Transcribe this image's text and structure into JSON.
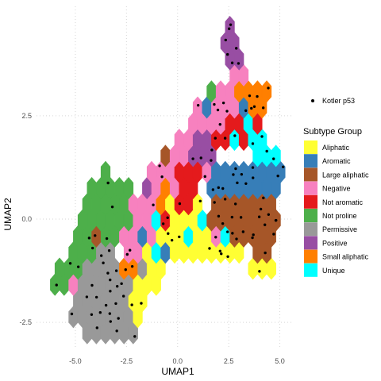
{
  "chart_data": {
    "type": "hexbin-scatter",
    "xlabel": "UMAP1",
    "ylabel": "UMAP2",
    "xlim": [
      -6.9,
      5.6
    ],
    "ylim": [
      -3.15,
      5.15
    ],
    "x_ticks": [
      -5.0,
      -2.5,
      0.0,
      2.5,
      5.0
    ],
    "x_tick_labels": [
      "-5.0",
      "-2.5",
      "0.0",
      "2.5",
      "5.0"
    ],
    "y_ticks": [
      -2.5,
      0.0,
      2.5
    ],
    "y_tick_labels": [
      "-2.5",
      "0.0",
      "2.5"
    ],
    "grid": "dotted, major lines",
    "hex_radius": 0.26,
    "legend": {
      "position": "right",
      "point_label": "Kotler p53",
      "title": "Subtype Group",
      "items": [
        {
          "label": "Aliphatic",
          "color": "#FFFF33"
        },
        {
          "label": "Aromatic",
          "color": "#377EB8"
        },
        {
          "label": "Large aliphatic",
          "color": "#A65628"
        },
        {
          "label": "Negative",
          "color": "#F781BF"
        },
        {
          "label": "Not aromatic",
          "color": "#E41A1C"
        },
        {
          "label": "Not proline",
          "color": "#4DAF4A"
        },
        {
          "label": "Permissive",
          "color": "#999999"
        },
        {
          "label": "Positive",
          "color": "#984EA3"
        },
        {
          "label": "Small aliphatic",
          "color": "#FF7F00"
        },
        {
          "label": "Unique",
          "color": "#00FFFF"
        }
      ]
    },
    "regions": [
      {
        "group": "Not proline",
        "polygon": [
          [
            -6.4,
            -1.4
          ],
          [
            -5.9,
            -1.2
          ],
          [
            -5.4,
            -0.8
          ],
          [
            -5.2,
            -0.2
          ],
          [
            -4.8,
            0.3
          ],
          [
            -4.4,
            0.6
          ],
          [
            -3.6,
            1.2
          ],
          [
            -3.0,
            1.0
          ],
          [
            -2.4,
            1.0
          ],
          [
            -2.0,
            0.5
          ],
          [
            -1.8,
            0.0
          ],
          [
            -2.2,
            -0.4
          ],
          [
            -2.6,
            -0.4
          ],
          [
            -3.0,
            -0.6
          ],
          [
            -3.6,
            -0.8
          ],
          [
            -4.2,
            -1.2
          ],
          [
            -4.8,
            -1.5
          ],
          [
            -5.4,
            -1.8
          ],
          [
            -6.1,
            -1.8
          ]
        ]
      },
      {
        "group": "Permissive",
        "polygon": [
          [
            -5.2,
            -1.6
          ],
          [
            -4.4,
            -1.0
          ],
          [
            -3.6,
            -0.5
          ],
          [
            -2.8,
            -0.9
          ],
          [
            -2.2,
            -1.2
          ],
          [
            -1.8,
            -1.8
          ],
          [
            -1.6,
            -2.6
          ],
          [
            -2.2,
            -3.0
          ],
          [
            -3.2,
            -3.0
          ],
          [
            -4.4,
            -2.8
          ],
          [
            -5.2,
            -2.4
          ]
        ]
      },
      {
        "group": "Negative",
        "polygon": [
          [
            -2.8,
            -0.3
          ],
          [
            -2.2,
            0.4
          ],
          [
            -1.8,
            0.9
          ],
          [
            -1.0,
            1.4
          ],
          [
            -0.2,
            1.8
          ],
          [
            0.4,
            2.2
          ],
          [
            1.0,
            2.8
          ],
          [
            1.6,
            3.1
          ],
          [
            2.2,
            3.4
          ],
          [
            2.8,
            3.6
          ],
          [
            3.2,
            3.8
          ],
          [
            3.4,
            3.3
          ],
          [
            3.0,
            2.5
          ],
          [
            2.4,
            2.0
          ],
          [
            1.8,
            1.4
          ],
          [
            1.0,
            0.7
          ],
          [
            0.4,
            0.4
          ],
          [
            -0.2,
            0.0
          ],
          [
            -0.8,
            -0.4
          ],
          [
            -1.4,
            -0.8
          ],
          [
            -2.0,
            -1.6
          ],
          [
            -2.6,
            -1.3
          ]
        ]
      },
      {
        "group": "Aliphatic",
        "polygon": [
          [
            -2.2,
            -1.4
          ],
          [
            -1.6,
            -0.6
          ],
          [
            -1.0,
            -0.1
          ],
          [
            -0.4,
            0.4
          ],
          [
            0.2,
            0.6
          ],
          [
            0.8,
            0.5
          ],
          [
            1.6,
            0.0
          ],
          [
            2.6,
            -0.6
          ],
          [
            3.4,
            -0.9
          ],
          [
            4.4,
            -0.9
          ],
          [
            4.8,
            -1.1
          ],
          [
            4.4,
            -1.3
          ],
          [
            3.4,
            -1.2
          ],
          [
            2.4,
            -1.1
          ],
          [
            1.4,
            -1.1
          ],
          [
            0.6,
            -1.1
          ],
          [
            0.0,
            -1.0
          ],
          [
            -0.6,
            -1.1
          ],
          [
            -1.0,
            -1.6
          ],
          [
            -1.6,
            -2.2
          ],
          [
            -2.2,
            -2.6
          ],
          [
            -2.6,
            -2.0
          ]
        ]
      },
      {
        "group": "Large aliphatic",
        "polygon": [
          [
            1.2,
            0.2
          ],
          [
            2.0,
            0.4
          ],
          [
            3.0,
            0.6
          ],
          [
            4.0,
            0.8
          ],
          [
            4.8,
            0.9
          ],
          [
            5.0,
            0.2
          ],
          [
            4.9,
            -0.6
          ],
          [
            4.4,
            -0.9
          ],
          [
            3.6,
            -0.8
          ],
          [
            2.8,
            -0.7
          ],
          [
            2.0,
            -0.5
          ],
          [
            1.4,
            -0.2
          ]
        ]
      },
      {
        "group": "Aromatic",
        "polygon": [
          [
            1.6,
            1.3
          ],
          [
            2.2,
            1.4
          ],
          [
            3.0,
            1.5
          ],
          [
            3.8,
            1.3
          ],
          [
            4.6,
            1.4
          ],
          [
            5.1,
            1.2
          ],
          [
            5.1,
            0.6
          ],
          [
            4.6,
            0.7
          ],
          [
            3.8,
            0.7
          ],
          [
            3.0,
            0.6
          ],
          [
            2.2,
            0.5
          ],
          [
            1.6,
            0.6
          ]
        ]
      },
      {
        "group": "Not aromatic",
        "polygon": [
          [
            1.8,
            2.1
          ],
          [
            2.4,
            2.3
          ],
          [
            3.0,
            2.5
          ],
          [
            3.6,
            2.6
          ],
          [
            4.0,
            2.4
          ],
          [
            4.3,
            1.9
          ],
          [
            3.8,
            1.8
          ],
          [
            3.2,
            1.9
          ],
          [
            2.6,
            1.8
          ],
          [
            2.0,
            1.8
          ]
        ]
      },
      {
        "group": "Small aliphatic",
        "polygon": [
          [
            2.7,
            3.4
          ],
          [
            3.2,
            3.2
          ],
          [
            3.8,
            3.4
          ],
          [
            4.4,
            3.5
          ],
          [
            4.7,
            3.0
          ],
          [
            4.5,
            2.5
          ],
          [
            4.0,
            2.4
          ],
          [
            3.5,
            2.6
          ],
          [
            3.0,
            2.7
          ],
          [
            2.6,
            3.0
          ]
        ]
      },
      {
        "group": "Unique",
        "polygon": [
          [
            3.3,
            2.6
          ],
          [
            3.9,
            2.1
          ],
          [
            4.5,
            1.8
          ],
          [
            4.9,
            1.6
          ],
          [
            5.1,
            1.3
          ],
          [
            4.7,
            1.3
          ],
          [
            4.1,
            1.3
          ],
          [
            3.6,
            1.6
          ],
          [
            3.2,
            2.0
          ],
          [
            3.0,
            2.4
          ]
        ]
      },
      {
        "group": "Positive",
        "polygon": [
          [
            2.3,
            5.0
          ],
          [
            2.8,
            4.7
          ],
          [
            3.2,
            4.4
          ],
          [
            3.3,
            3.9
          ],
          [
            2.9,
            3.6
          ],
          [
            2.5,
            3.7
          ],
          [
            2.2,
            4.1
          ],
          [
            2.1,
            4.6
          ]
        ]
      },
      {
        "group": "Positive",
        "polygon": [
          [
            0.6,
            1.9
          ],
          [
            1.2,
            2.1
          ],
          [
            1.8,
            1.9
          ],
          [
            2.2,
            1.6
          ],
          [
            1.6,
            1.4
          ],
          [
            0.9,
            1.5
          ],
          [
            0.4,
            1.6
          ]
        ]
      },
      {
        "group": "Not aromatic",
        "polygon": [
          [
            -0.2,
            1.2
          ],
          [
            0.4,
            1.5
          ],
          [
            1.0,
            1.2
          ],
          [
            1.0,
            0.7
          ],
          [
            0.4,
            0.6
          ],
          [
            -0.1,
            0.8
          ]
        ]
      },
      {
        "group": "Small aliphatic",
        "polygon": [
          [
            -1.4,
            0.7
          ],
          [
            -0.6,
            0.8
          ],
          [
            -0.2,
            0.5
          ],
          [
            -0.6,
            0.3
          ],
          [
            -1.2,
            0.4
          ]
        ]
      }
    ],
    "hex_overrides": [
      {
        "x": 1.3,
        "y": 2.6,
        "group": "Aromatic"
      },
      {
        "x": 1.6,
        "y": 2.9,
        "group": "Not proline"
      },
      {
        "x": 3.4,
        "y": 2.8,
        "group": "Aromatic"
      },
      {
        "x": -4.2,
        "y": 0.5,
        "group": "Negative"
      },
      {
        "x": -2.4,
        "y": -0.2,
        "group": "Not proline"
      },
      {
        "x": -1.3,
        "y": -0.4,
        "group": "Negative"
      },
      {
        "x": -2.4,
        "y": -1.2,
        "group": "Small aliphatic"
      },
      {
        "x": -1.7,
        "y": -1.2,
        "group": "Permissive"
      },
      {
        "x": -0.9,
        "y": 0.0,
        "group": "Unique"
      },
      {
        "x": -0.5,
        "y": -0.1,
        "group": "Not aromatic"
      },
      {
        "x": 0.3,
        "y": 0.4,
        "group": "Not aromatic"
      },
      {
        "x": 1.4,
        "y": 0.1,
        "group": "Unique"
      },
      {
        "x": 0.7,
        "y": -0.3,
        "group": "Unique"
      },
      {
        "x": -0.4,
        "y": -0.8,
        "group": "Aromatic"
      },
      {
        "x": -0.9,
        "y": -0.9,
        "group": "Unique"
      },
      {
        "x": 0.0,
        "y": -1.4,
        "group": "Large aliphatic"
      },
      {
        "x": -1.9,
        "y": -0.5,
        "group": "Aromatic"
      },
      {
        "x": 2.1,
        "y": -0.4,
        "group": "Negative"
      },
      {
        "x": 2.4,
        "y": -0.6,
        "group": "Unique"
      },
      {
        "x": -6.8,
        "y": -1.6,
        "group": "Unique"
      },
      {
        "x": -5.3,
        "y": -1.6,
        "group": "Negative"
      },
      {
        "x": -3.8,
        "y": -0.4,
        "group": "Large aliphatic"
      },
      {
        "x": -2.9,
        "y": -0.9,
        "group": "Unique"
      },
      {
        "x": 1.9,
        "y": 1.7,
        "group": "Not aromatic"
      },
      {
        "x": 2.8,
        "y": 1.7,
        "group": "Unique"
      },
      {
        "x": -1.6,
        "y": 0.9,
        "group": "Positive"
      },
      {
        "x": -0.5,
        "y": 1.6,
        "group": "Large aliphatic"
      }
    ],
    "points_note": "Kotler p53 points drawn as black dots scattered across the filled hex area"
  }
}
